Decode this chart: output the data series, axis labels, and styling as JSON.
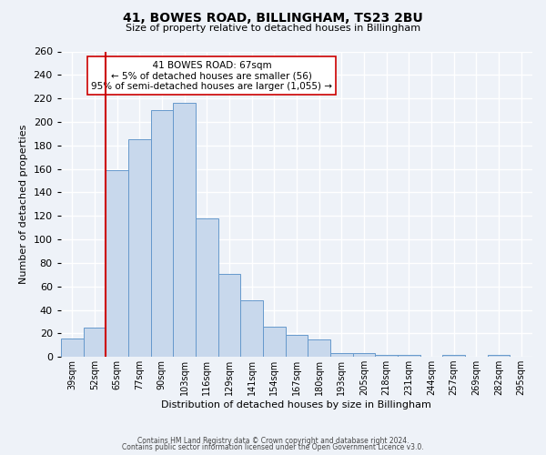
{
  "title": "41, BOWES ROAD, BILLINGHAM, TS23 2BU",
  "subtitle": "Size of property relative to detached houses in Billingham",
  "xlabel": "Distribution of detached houses by size in Billingham",
  "ylabel": "Number of detached properties",
  "categories": [
    "39sqm",
    "52sqm",
    "65sqm",
    "77sqm",
    "90sqm",
    "103sqm",
    "116sqm",
    "129sqm",
    "141sqm",
    "154sqm",
    "167sqm",
    "180sqm",
    "193sqm",
    "205sqm",
    "218sqm",
    "231sqm",
    "244sqm",
    "257sqm",
    "269sqm",
    "282sqm",
    "295sqm"
  ],
  "values": [
    16,
    25,
    159,
    185,
    210,
    216,
    118,
    71,
    48,
    26,
    19,
    15,
    3,
    3,
    2,
    2,
    0,
    2,
    0,
    2,
    0
  ],
  "bar_color": "#c8d8ec",
  "bar_edge_color": "#6699cc",
  "bar_edge_width": 0.7,
  "property_line_x": 2,
  "property_line_color": "#cc0000",
  "annotation_title": "41 BOWES ROAD: 67sqm",
  "annotation_line1": "← 5% of detached houses are smaller (56)",
  "annotation_line2": "95% of semi-detached houses are larger (1,055) →",
  "annotation_box_color": "#ffffff",
  "annotation_box_edge": "#cc0000",
  "ylim": [
    0,
    260
  ],
  "yticks": [
    0,
    20,
    40,
    60,
    80,
    100,
    120,
    140,
    160,
    180,
    200,
    220,
    240,
    260
  ],
  "background_color": "#eef2f8",
  "grid_color": "#ffffff",
  "footer1": "Contains HM Land Registry data © Crown copyright and database right 2024.",
  "footer2": "Contains public sector information licensed under the Open Government Licence v3.0."
}
